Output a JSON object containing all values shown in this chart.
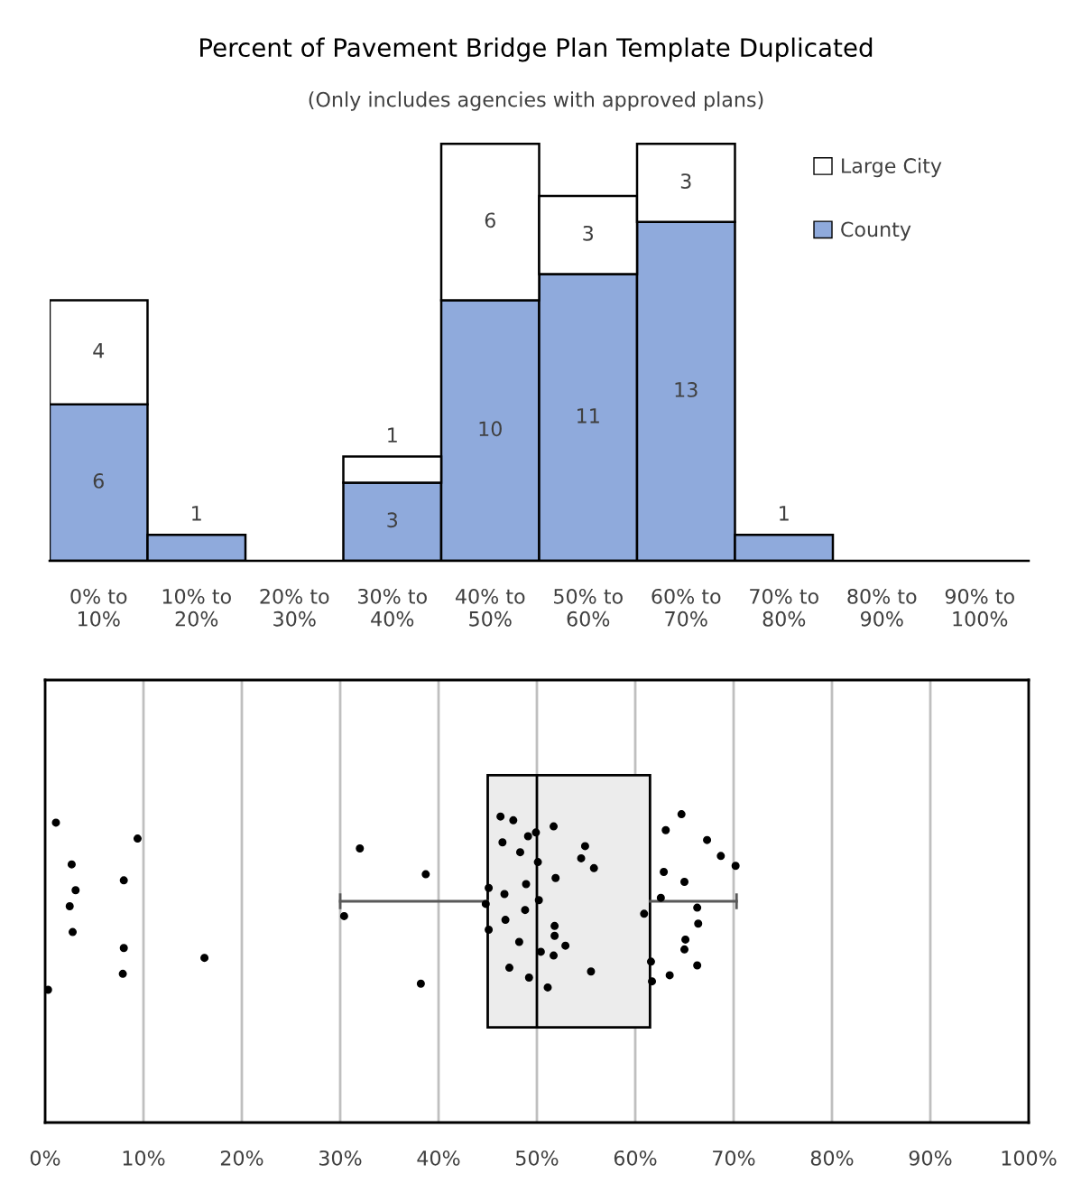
{
  "chart_data": [
    {
      "type": "bar",
      "title": "Percent of Pavement Bridge Plan Template Duplicated",
      "subtitle": "(Only includes agencies with approved plans)",
      "categories": [
        "0% to\n10%",
        "10% to\n20%",
        "20% to\n30%",
        "30% to\n40%",
        "40% to\n50%",
        "50% to\n60%",
        "60% to\n70%",
        "70% to\n80%",
        "80% to\n90%",
        "90% to\n100%"
      ],
      "stacked": true,
      "legend": "top right",
      "tick_labels": "x",
      "grid": false,
      "series": [
        {
          "name": "County",
          "color": "#8faadc",
          "values": [
            6,
            1,
            null,
            3,
            10,
            11,
            13,
            1,
            null,
            null
          ],
          "value_labels": [
            "6",
            "1",
            null,
            "3",
            "10",
            "11",
            "13",
            "1",
            null,
            null
          ]
        },
        {
          "name": "Large City",
          "color": "#ffffff",
          "values": [
            4,
            null,
            null,
            1,
            6,
            3,
            3,
            null,
            null,
            null
          ],
          "value_labels": [
            "4",
            null,
            null,
            "1",
            "6",
            "3",
            "3",
            null,
            null,
            null
          ]
        }
      ]
    },
    {
      "type": "box",
      "orientation": "horizontal",
      "grid": "x",
      "categories": [
        null
      ],
      "tick_labels": "x",
      "xlim": [
        0,
        100
      ],
      "xticks": [
        {
          "value": 0,
          "label": "0%"
        },
        {
          "value": 10,
          "label": "10%"
        },
        {
          "value": 20,
          "label": "20%"
        },
        {
          "value": 30,
          "label": "30%"
        },
        {
          "value": 40,
          "label": "40%"
        },
        {
          "value": 50,
          "label": "50%"
        },
        {
          "value": 60,
          "label": "60%"
        },
        {
          "value": 70,
          "label": "70%"
        },
        {
          "value": 80,
          "label": "80%"
        },
        {
          "value": 90,
          "label": "90%"
        },
        {
          "value": 100,
          "label": "100%"
        }
      ],
      "boxes": [
        {
          "low": 30,
          "q1": 45,
          "median": 50,
          "q3": 61.5,
          "high": 70.3
        }
      ],
      "series": [
        {
          "type": "scatter",
          "color": "#000000",
          "x": [
            null,
            null,
            null,
            null,
            null,
            null,
            null,
            null,
            null,
            null,
            null,
            null,
            null,
            null,
            null,
            null,
            null,
            null,
            null,
            null,
            null,
            null,
            null,
            null,
            null,
            null,
            null,
            null,
            null,
            null,
            null,
            null,
            null,
            null,
            null,
            null,
            null,
            null,
            null,
            null,
            null,
            null,
            null,
            null,
            null,
            null,
            null,
            null,
            null,
            null,
            null,
            null,
            null,
            null,
            null,
            null,
            null,
            null,
            null,
            null,
            null,
            null
          ],
          "values": [
            0.3,
            8.0,
            8.0,
            9.4,
            2.5,
            7.9,
            2.7,
            2.8,
            1.1,
            3.1,
            16.2,
            32.0,
            30.4,
            38.2,
            38.7,
            48.2,
            49.9,
            50.2,
            47.2,
            54.5,
            51.8,
            46.3,
            48.9,
            50.4,
            46.5,
            48.8,
            49.2,
            55.8,
            51.8,
            51.7,
            46.7,
            61.6,
            48.3,
            46.8,
            51.1,
            51.9,
            52.9,
            49.1,
            44.8,
            55.5,
            50.1,
            45.1,
            47.6,
            45.1,
            51.7,
            54.9,
            60.9,
            61.7,
            62.9,
            65.1,
            63.1,
            62.6,
            66.3,
            68.7,
            66.4,
            64.7,
            65.0,
            65.0,
            67.3,
            66.3,
            63.5,
            70.2
          ]
        }
      ]
    }
  ]
}
